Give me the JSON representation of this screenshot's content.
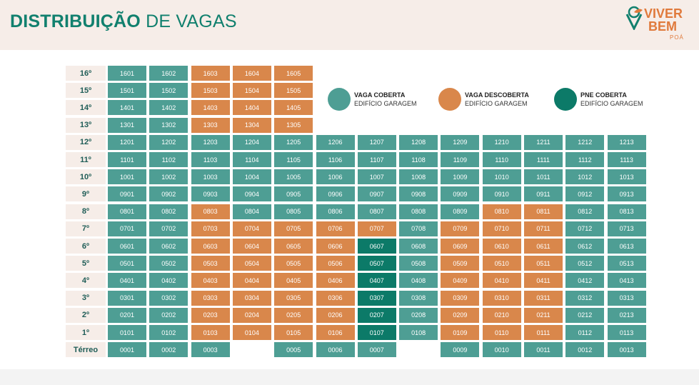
{
  "title": {
    "bold": "DISTRIBUIÇÃO",
    "light": "DE VAGAS"
  },
  "logo": {
    "line1": "VIVER",
    "line2": "BEM",
    "sub": "POÁ"
  },
  "legend": [
    {
      "title": "VAGA COBERTA",
      "subtitle": "EDIFÍCIO GARAGEM",
      "color": "#4e9e94"
    },
    {
      "title": "VAGA DESCOBERTA",
      "subtitle": "EDIFÍCIO GARAGEM",
      "color": "#d9874b"
    },
    {
      "title": "PNE COBERTA",
      "subtitle": "EDIFÍCIO GARAGEM",
      "color": "#0c7a68"
    }
  ],
  "floors": [
    {
      "label": "16º",
      "cells": [
        [
          "1601",
          "c"
        ],
        [
          "1602",
          "c"
        ],
        [
          "1603",
          "d"
        ],
        [
          "1604",
          "d"
        ],
        [
          "1605",
          "d"
        ]
      ]
    },
    {
      "label": "15º",
      "cells": [
        [
          "1501",
          "c"
        ],
        [
          "1502",
          "c"
        ],
        [
          "1503",
          "d"
        ],
        [
          "1504",
          "d"
        ],
        [
          "1505",
          "d"
        ]
      ]
    },
    {
      "label": "14º",
      "cells": [
        [
          "1401",
          "c"
        ],
        [
          "1402",
          "c"
        ],
        [
          "1403",
          "d"
        ],
        [
          "1404",
          "d"
        ],
        [
          "1405",
          "d"
        ]
      ]
    },
    {
      "label": "13º",
      "cells": [
        [
          "1301",
          "c"
        ],
        [
          "1302",
          "c"
        ],
        [
          "1303",
          "d"
        ],
        [
          "1304",
          "d"
        ],
        [
          "1305",
          "d"
        ]
      ]
    },
    {
      "label": "12º",
      "cells": [
        [
          "1201",
          "c"
        ],
        [
          "1202",
          "c"
        ],
        [
          "1203",
          "c"
        ],
        [
          "1204",
          "c"
        ],
        [
          "1205",
          "c"
        ],
        [
          "1206",
          "c"
        ],
        [
          "1207",
          "c"
        ],
        [
          "1208",
          "c"
        ],
        [
          "1209",
          "c"
        ],
        [
          "1210",
          "c"
        ],
        [
          "1211",
          "c"
        ],
        [
          "1212",
          "c"
        ],
        [
          "1213",
          "c"
        ]
      ]
    },
    {
      "label": "11º",
      "cells": [
        [
          "1101",
          "c"
        ],
        [
          "1102",
          "c"
        ],
        [
          "1103",
          "c"
        ],
        [
          "1104",
          "c"
        ],
        [
          "1105",
          "c"
        ],
        [
          "1106",
          "c"
        ],
        [
          "1107",
          "c"
        ],
        [
          "1108",
          "c"
        ],
        [
          "1109",
          "c"
        ],
        [
          "1110",
          "c"
        ],
        [
          "1111",
          "c"
        ],
        [
          "1112",
          "c"
        ],
        [
          "1113",
          "c"
        ]
      ]
    },
    {
      "label": "10º",
      "cells": [
        [
          "1001",
          "c"
        ],
        [
          "1002",
          "c"
        ],
        [
          "1003",
          "c"
        ],
        [
          "1004",
          "c"
        ],
        [
          "1005",
          "c"
        ],
        [
          "1006",
          "c"
        ],
        [
          "1007",
          "c"
        ],
        [
          "1008",
          "c"
        ],
        [
          "1009",
          "c"
        ],
        [
          "1010",
          "c"
        ],
        [
          "1011",
          "c"
        ],
        [
          "1012",
          "c"
        ],
        [
          "1013",
          "c"
        ]
      ]
    },
    {
      "label": "9º",
      "cells": [
        [
          "0901",
          "c"
        ],
        [
          "0902",
          "c"
        ],
        [
          "0903",
          "c"
        ],
        [
          "0904",
          "c"
        ],
        [
          "0905",
          "c"
        ],
        [
          "0906",
          "c"
        ],
        [
          "0907",
          "c"
        ],
        [
          "0908",
          "c"
        ],
        [
          "0909",
          "c"
        ],
        [
          "0910",
          "c"
        ],
        [
          "0911",
          "c"
        ],
        [
          "0912",
          "c"
        ],
        [
          "0913",
          "c"
        ]
      ]
    },
    {
      "label": "8º",
      "cells": [
        [
          "0801",
          "c"
        ],
        [
          "0802",
          "c"
        ],
        [
          "0803",
          "d"
        ],
        [
          "0804",
          "c"
        ],
        [
          "0805",
          "c"
        ],
        [
          "0806",
          "c"
        ],
        [
          "0807",
          "c"
        ],
        [
          "0808",
          "c"
        ],
        [
          "0809",
          "c"
        ],
        [
          "0810",
          "d"
        ],
        [
          "0811",
          "d"
        ],
        [
          "0812",
          "c"
        ],
        [
          "0813",
          "c"
        ]
      ]
    },
    {
      "label": "7º",
      "cells": [
        [
          "0701",
          "c"
        ],
        [
          "0702",
          "c"
        ],
        [
          "0703",
          "d"
        ],
        [
          "0704",
          "d"
        ],
        [
          "0705",
          "d"
        ],
        [
          "0706",
          "d"
        ],
        [
          "0707",
          "d"
        ],
        [
          "0708",
          "c"
        ],
        [
          "0709",
          "d"
        ],
        [
          "0710",
          "d"
        ],
        [
          "0711",
          "d"
        ],
        [
          "0712",
          "c"
        ],
        [
          "0713",
          "c"
        ]
      ]
    },
    {
      "label": "6º",
      "cells": [
        [
          "0601",
          "c"
        ],
        [
          "0602",
          "c"
        ],
        [
          "0603",
          "d"
        ],
        [
          "0604",
          "d"
        ],
        [
          "0605",
          "d"
        ],
        [
          "0606",
          "d"
        ],
        [
          "0607",
          "p"
        ],
        [
          "0608",
          "c"
        ],
        [
          "0609",
          "d"
        ],
        [
          "0610",
          "d"
        ],
        [
          "0611",
          "d"
        ],
        [
          "0612",
          "c"
        ],
        [
          "0613",
          "c"
        ]
      ]
    },
    {
      "label": "5º",
      "cells": [
        [
          "0501",
          "c"
        ],
        [
          "0502",
          "c"
        ],
        [
          "0503",
          "d"
        ],
        [
          "0504",
          "d"
        ],
        [
          "0505",
          "d"
        ],
        [
          "0506",
          "d"
        ],
        [
          "0507",
          "p"
        ],
        [
          "0508",
          "c"
        ],
        [
          "0509",
          "d"
        ],
        [
          "0510",
          "d"
        ],
        [
          "0511",
          "d"
        ],
        [
          "0512",
          "c"
        ],
        [
          "0513",
          "c"
        ]
      ]
    },
    {
      "label": "4º",
      "cells": [
        [
          "0401",
          "c"
        ],
        [
          "0402",
          "c"
        ],
        [
          "0403",
          "d"
        ],
        [
          "0404",
          "d"
        ],
        [
          "0405",
          "d"
        ],
        [
          "0406",
          "d"
        ],
        [
          "0407",
          "p"
        ],
        [
          "0408",
          "c"
        ],
        [
          "0409",
          "d"
        ],
        [
          "0410",
          "d"
        ],
        [
          "0411",
          "d"
        ],
        [
          "0412",
          "c"
        ],
        [
          "0413",
          "c"
        ]
      ]
    },
    {
      "label": "3º",
      "cells": [
        [
          "0301",
          "c"
        ],
        [
          "0302",
          "c"
        ],
        [
          "0303",
          "d"
        ],
        [
          "0304",
          "d"
        ],
        [
          "0305",
          "d"
        ],
        [
          "0306",
          "d"
        ],
        [
          "0307",
          "p"
        ],
        [
          "0308",
          "c"
        ],
        [
          "0309",
          "d"
        ],
        [
          "0310",
          "d"
        ],
        [
          "0311",
          "d"
        ],
        [
          "0312",
          "c"
        ],
        [
          "0313",
          "c"
        ]
      ]
    },
    {
      "label": "2º",
      "cells": [
        [
          "0201",
          "c"
        ],
        [
          "0202",
          "c"
        ],
        [
          "0203",
          "d"
        ],
        [
          "0204",
          "d"
        ],
        [
          "0205",
          "d"
        ],
        [
          "0206",
          "d"
        ],
        [
          "0207",
          "p"
        ],
        [
          "0208",
          "c"
        ],
        [
          "0209",
          "d"
        ],
        [
          "0210",
          "d"
        ],
        [
          "0211",
          "d"
        ],
        [
          "0212",
          "c"
        ],
        [
          "0213",
          "c"
        ]
      ]
    },
    {
      "label": "1º",
      "cells": [
        [
          "0101",
          "c"
        ],
        [
          "0102",
          "c"
        ],
        [
          "0103",
          "d"
        ],
        [
          "0104",
          "d"
        ],
        [
          "0105",
          "d"
        ],
        [
          "0106",
          "d"
        ],
        [
          "0107",
          "p"
        ],
        [
          "0108",
          "c"
        ],
        [
          "0109",
          "d"
        ],
        [
          "0110",
          "d"
        ],
        [
          "0111",
          "d"
        ],
        [
          "0112",
          "c"
        ],
        [
          "0113",
          "c"
        ]
      ]
    },
    {
      "label": "Térreo",
      "cells": [
        [
          "0001",
          "c"
        ],
        [
          "0002",
          "c"
        ],
        [
          "0003",
          "c"
        ],
        null,
        [
          "0005",
          "c"
        ],
        [
          "0006",
          "c"
        ],
        [
          "0007",
          "c"
        ],
        null,
        [
          "0009",
          "c"
        ],
        [
          "0010",
          "c"
        ],
        [
          "0011",
          "c"
        ],
        [
          "0012",
          "c"
        ],
        [
          "0013",
          "c"
        ]
      ]
    }
  ]
}
